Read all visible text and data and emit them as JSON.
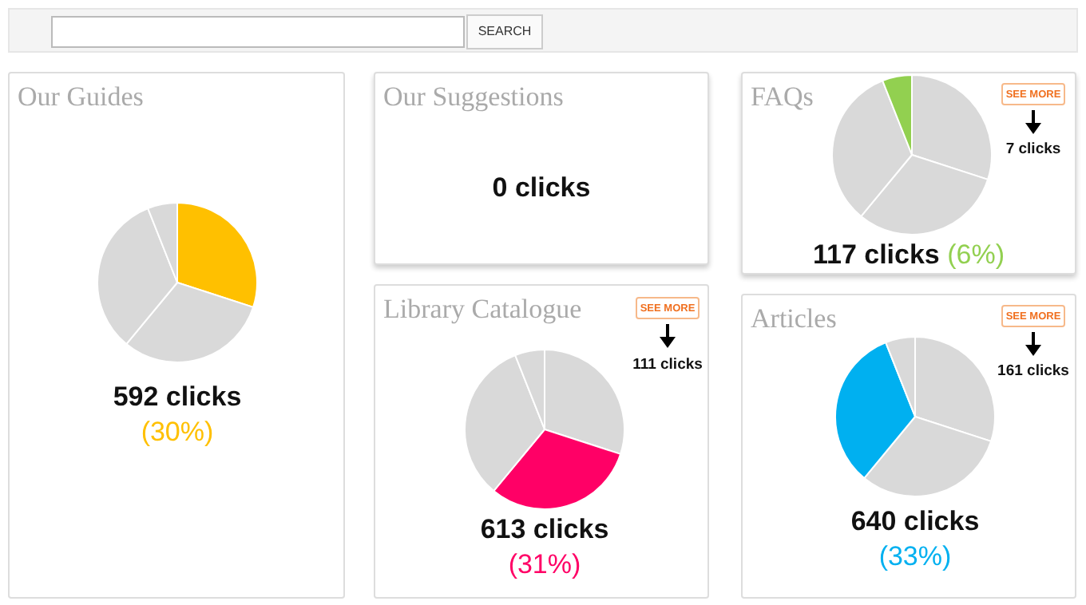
{
  "chart_data": [
    {
      "type": "other",
      "annotations": [
        "SEARCH"
      ]
    },
    {
      "type": "pie",
      "title": "Our Guides",
      "categories": [
        null,
        null,
        null,
        null
      ],
      "values": [
        30,
        31,
        33,
        6
      ],
      "colors": [
        "#ffc000",
        "#d9d9d9",
        "#d9d9d9",
        "#d9d9d9"
      ],
      "annotations": [
        "592 clicks",
        "(30%)"
      ]
    },
    {
      "type": "other",
      "title": "Our Suggestions",
      "annotations": [
        "0 clicks"
      ]
    },
    {
      "type": "pie",
      "title": "FAQs",
      "categories": [
        null,
        null,
        null,
        null
      ],
      "values": [
        30,
        31,
        33,
        6
      ],
      "colors": [
        "#d9d9d9",
        "#d9d9d9",
        "#d9d9d9",
        "#92d050"
      ],
      "annotations": [
        "117 clicks",
        "(6%)",
        "SEE MORE",
        "7 clicks"
      ]
    },
    {
      "type": "pie",
      "title": "Library Catalogue",
      "categories": [
        null,
        null,
        null,
        null
      ],
      "values": [
        30,
        31,
        33,
        6
      ],
      "colors": [
        "#d9d9d9",
        "#ff0066",
        "#d9d9d9",
        "#d9d9d9"
      ],
      "annotations": [
        "613 clicks",
        "(31%)",
        "SEE MORE",
        "111 clicks"
      ]
    },
    {
      "type": "pie",
      "title": "Articles",
      "categories": [
        null,
        null,
        null,
        null
      ],
      "values": [
        30,
        31,
        33,
        6
      ],
      "colors": [
        "#d9d9d9",
        "#d9d9d9",
        "#00b0f0",
        "#d9d9d9"
      ],
      "annotations": [
        "640 clicks",
        "(33%)",
        "SEE MORE",
        "161 clicks"
      ]
    }
  ]
}
